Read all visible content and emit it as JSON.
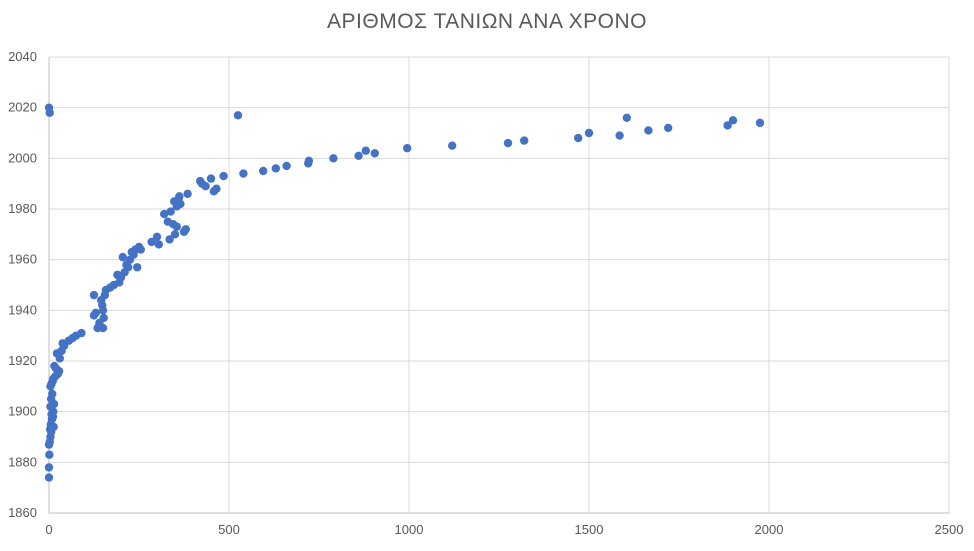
{
  "chart_data": {
    "type": "scatter",
    "title": "ΑΡΙΘΜΟΣ ΤΑΝΙΩΝ ΑΝΑ ΧΡΟΝΟ",
    "xlabel": "",
    "ylabel": "",
    "xlim": [
      0,
      2500
    ],
    "ylim": [
      1860,
      2040
    ],
    "xticks": [
      0,
      500,
      1000,
      1500,
      2000,
      2500
    ],
    "yticks": [
      1860,
      1880,
      1900,
      1920,
      1940,
      1960,
      1980,
      2000,
      2020,
      2040
    ],
    "grid": true,
    "legend": "none",
    "marker_color": "#4472C4",
    "series": [
      {
        "points": [
          [
            0,
            2020
          ],
          [
            2,
            2018
          ],
          [
            0,
            1874
          ],
          [
            0,
            1878
          ],
          [
            1,
            1883
          ],
          [
            0,
            1887
          ],
          [
            2,
            1888
          ],
          [
            4,
            1890
          ],
          [
            3,
            1893
          ],
          [
            6,
            1892
          ],
          [
            5,
            1895
          ],
          [
            8,
            1897
          ],
          [
            7,
            1899
          ],
          [
            4,
            1902
          ],
          [
            10,
            1903
          ],
          [
            6,
            1905
          ],
          [
            9,
            1907
          ],
          [
            12,
            1900
          ],
          [
            14,
            1903
          ],
          [
            11,
            1898
          ],
          [
            13,
            1894
          ],
          [
            4,
            1910
          ],
          [
            7,
            1911
          ],
          [
            10,
            1912
          ],
          [
            12,
            1913
          ],
          [
            15,
            1918
          ],
          [
            20,
            1917
          ],
          [
            25,
            1915
          ],
          [
            28,
            1916
          ],
          [
            18,
            1914
          ],
          [
            22,
            1923
          ],
          [
            30,
            1921
          ],
          [
            35,
            1924
          ],
          [
            38,
            1927
          ],
          [
            42,
            1926
          ],
          [
            55,
            1928
          ],
          [
            65,
            1929
          ],
          [
            75,
            1930
          ],
          [
            90,
            1931
          ],
          [
            125,
            1938
          ],
          [
            130,
            1939
          ],
          [
            125,
            1946
          ],
          [
            135,
            1933
          ],
          [
            140,
            1935
          ],
          [
            145,
            1944
          ],
          [
            148,
            1942
          ],
          [
            150,
            1940
          ],
          [
            152,
            1937
          ],
          [
            150,
            1933
          ],
          [
            155,
            1946
          ],
          [
            158,
            1948
          ],
          [
            170,
            1949
          ],
          [
            180,
            1950
          ],
          [
            190,
            1954
          ],
          [
            195,
            1951
          ],
          [
            200,
            1953
          ],
          [
            205,
            1961
          ],
          [
            210,
            1955
          ],
          [
            215,
            1958
          ],
          [
            220,
            1957
          ],
          [
            225,
            1960
          ],
          [
            230,
            1963
          ],
          [
            235,
            1962
          ],
          [
            240,
            1964
          ],
          [
            245,
            1957
          ],
          [
            250,
            1965
          ],
          [
            255,
            1964
          ],
          [
            285,
            1967
          ],
          [
            300,
            1969
          ],
          [
            305,
            1966
          ],
          [
            320,
            1978
          ],
          [
            330,
            1975
          ],
          [
            335,
            1968
          ],
          [
            338,
            1979
          ],
          [
            345,
            1974
          ],
          [
            350,
            1970
          ],
          [
            355,
            1973
          ],
          [
            348,
            1983
          ],
          [
            355,
            1981
          ],
          [
            360,
            1984
          ],
          [
            362,
            1985
          ],
          [
            365,
            1982
          ],
          [
            375,
            1971
          ],
          [
            380,
            1972
          ],
          [
            385,
            1986
          ],
          [
            420,
            1991
          ],
          [
            425,
            1990
          ],
          [
            435,
            1989
          ],
          [
            450,
            1992
          ],
          [
            458,
            1987
          ],
          [
            465,
            1988
          ],
          [
            485,
            1993
          ],
          [
            525,
            2017
          ],
          [
            540,
            1994
          ],
          [
            595,
            1995
          ],
          [
            630,
            1996
          ],
          [
            660,
            1997
          ],
          [
            720,
            1998
          ],
          [
            722,
            1999
          ],
          [
            790,
            2000
          ],
          [
            860,
            2001
          ],
          [
            880,
            2003
          ],
          [
            905,
            2002
          ],
          [
            995,
            2004
          ],
          [
            1120,
            2005
          ],
          [
            1275,
            2006
          ],
          [
            1320,
            2007
          ],
          [
            1470,
            2008
          ],
          [
            1500,
            2010
          ],
          [
            1585,
            2009
          ],
          [
            1605,
            2016
          ],
          [
            1665,
            2011
          ],
          [
            1720,
            2012
          ],
          [
            1885,
            2013
          ],
          [
            1900,
            2015
          ],
          [
            1975,
            2014
          ]
        ]
      }
    ]
  }
}
